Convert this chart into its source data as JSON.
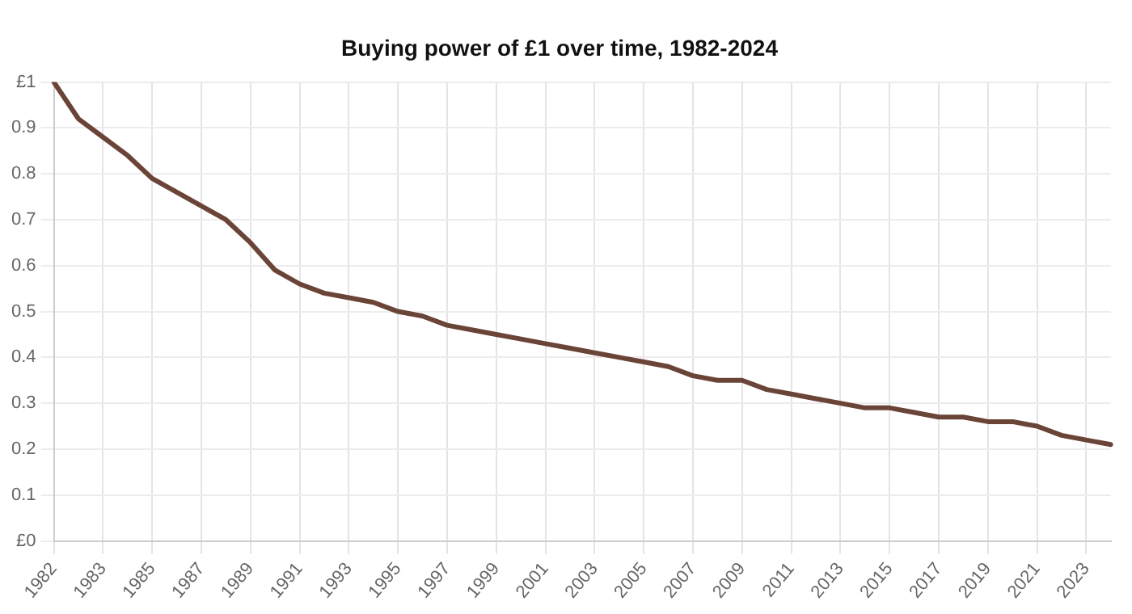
{
  "chart_data": {
    "type": "line",
    "title": "Buying power of £1 over time, 1982-2024",
    "categories": [
      "1982",
      null,
      "1983",
      null,
      "1985",
      null,
      "1987",
      null,
      "1989",
      null,
      "1991",
      null,
      "1993",
      null,
      "1995",
      null,
      "1997",
      null,
      "1999",
      null,
      "2001",
      null,
      "2003",
      null,
      "2005",
      null,
      "2007",
      null,
      "2009",
      null,
      "2011",
      null,
      "2013",
      null,
      "2015",
      null,
      "2017",
      null,
      "2019",
      null,
      "2021",
      null,
      "2023",
      null
    ],
    "series": [
      {
        "color": "#6b4438",
        "values": [
          1.0,
          0.92,
          0.88,
          0.84,
          0.79,
          0.76,
          0.73,
          0.7,
          0.65,
          0.59,
          0.56,
          0.54,
          0.53,
          0.52,
          0.5,
          0.49,
          0.47,
          0.46,
          0.45,
          0.44,
          0.43,
          0.42,
          0.41,
          0.4,
          0.39,
          0.38,
          0.36,
          0.35,
          0.35,
          0.33,
          0.32,
          0.31,
          0.3,
          0.29,
          0.29,
          0.28,
          0.27,
          0.27,
          0.26,
          0.26,
          0.25,
          0.23,
          0.22,
          0.21
        ]
      }
    ],
    "ylim": [
      0,
      1
    ],
    "yticks": [
      {
        "value": 0,
        "label": "£0"
      },
      0.1,
      0.2,
      0.3,
      0.4,
      0.5,
      0.6,
      0.7,
      0.8,
      0.9,
      {
        "value": 1,
        "label": "£1"
      }
    ],
    "grid": true,
    "legend": false,
    "marker": "none",
    "line_style": "solid"
  }
}
